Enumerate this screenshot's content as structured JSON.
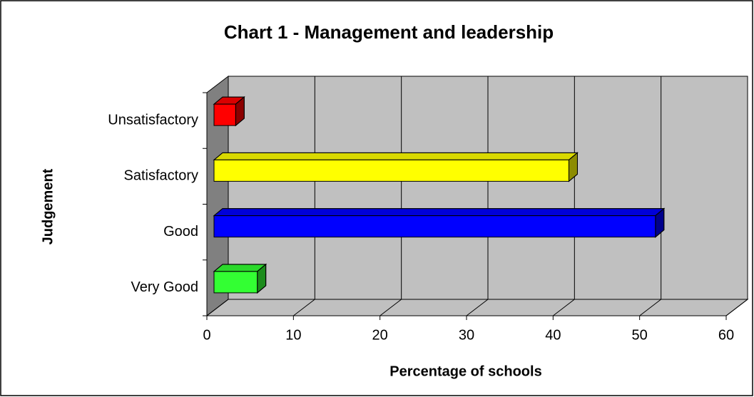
{
  "chart_data": {
    "type": "bar3d_horizontal",
    "title": "Chart 1 - Management and leadership",
    "x_label": "Percentage of schools",
    "y_label": "Judgement",
    "categories": [
      "Very Good",
      "Good",
      "Satisfactory",
      "Unsatisfactory"
    ],
    "values": [
      5,
      51,
      41,
      2.5
    ],
    "colors": [
      "#33ff33",
      "#0000ff",
      "#ffff00",
      "#ff0000"
    ],
    "xlim": [
      0,
      60
    ],
    "xticks": [
      0,
      10,
      20,
      30,
      40,
      50,
      60
    ],
    "grid": true
  }
}
